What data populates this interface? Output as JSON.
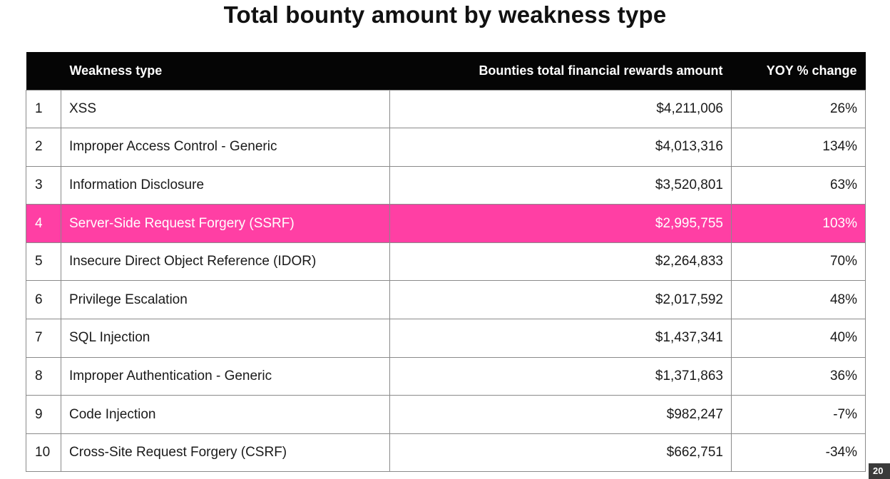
{
  "chart_data": {
    "type": "table",
    "title": "Total bounty amount by weakness type",
    "columns": [
      "",
      "Weakness type",
      "Bounties total financial rewards amount",
      "YOY % change"
    ],
    "highlight_color": "#ff3fa4",
    "highlighted_rank": "4",
    "rows": [
      {
        "rank": "1",
        "type": "XSS",
        "amount": "$4,211,006",
        "yoy": "26%"
      },
      {
        "rank": "2",
        "type": "Improper Access Control - Generic",
        "amount": "$4,013,316",
        "yoy": "134%"
      },
      {
        "rank": "3",
        "type": "Information Disclosure",
        "amount": "$3,520,801",
        "yoy": "63%"
      },
      {
        "rank": "4",
        "type": "Server-Side Request Forgery (SSRF)",
        "amount": "$2,995,755",
        "yoy": "103%"
      },
      {
        "rank": "5",
        "type": "Insecure Direct Object Reference (IDOR)",
        "amount": "$2,264,833",
        "yoy": "70%"
      },
      {
        "rank": "6",
        "type": "Privilege Escalation",
        "amount": "$2,017,592",
        "yoy": "48%"
      },
      {
        "rank": "7",
        "type": "SQL Injection",
        "amount": "$1,437,341",
        "yoy": "40%"
      },
      {
        "rank": "8",
        "type": "Improper Authentication - Generic",
        "amount": "$1,371,863",
        "yoy": "36%"
      },
      {
        "rank": "9",
        "type": "Code Injection",
        "amount": "$982,247",
        "yoy": "-7%"
      },
      {
        "rank": "10",
        "type": "Cross-Site Request Forgery (CSRF)",
        "amount": "$662,751",
        "yoy": "-34%"
      }
    ]
  },
  "corner_tag": "20"
}
